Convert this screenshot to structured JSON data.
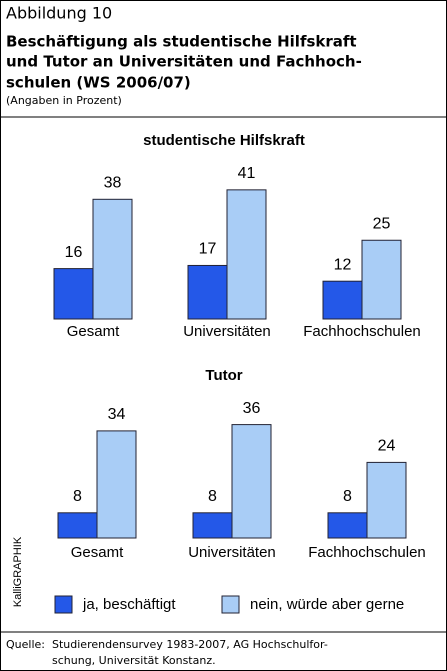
{
  "header": {
    "label": "Abbildung 10",
    "title": [
      "Beschäftigung als studentische Hilfskraft",
      "und Tutor an Universitäten und Fachhoch-",
      "schulen (WS 2006/07)"
    ],
    "subtitle": "(Angaben in Prozent)"
  },
  "chart_data": [
    {
      "type": "bar",
      "title": "studentische Hilfskraft",
      "categories": [
        "Gesamt",
        "Universitäten",
        "Fachhochschulen"
      ],
      "series": [
        {
          "name": "ja, beschäftigt",
          "color": "#2458e8",
          "values": [
            16,
            17,
            12
          ]
        },
        {
          "name": "nein, würde aber gerne",
          "color": "#a9cdf6",
          "values": [
            38,
            41,
            25
          ]
        }
      ]
    },
    {
      "type": "bar",
      "title": "Tutor",
      "categories": [
        "Gesamt",
        "Universitäten",
        "Fachhochschulen"
      ],
      "series": [
        {
          "color": "#2458e8",
          "values": [
            8,
            8,
            8
          ]
        },
        {
          "color": "#a9cdf6",
          "values": [
            34,
            36,
            24
          ]
        }
      ]
    }
  ],
  "source": {
    "label": "Quelle:",
    "lines": [
      "Studierendensurvey 1983-2007, AG Hochschulfor-",
      "schung, Universität Konstanz."
    ]
  },
  "credit": "KalliGRAPHIK"
}
